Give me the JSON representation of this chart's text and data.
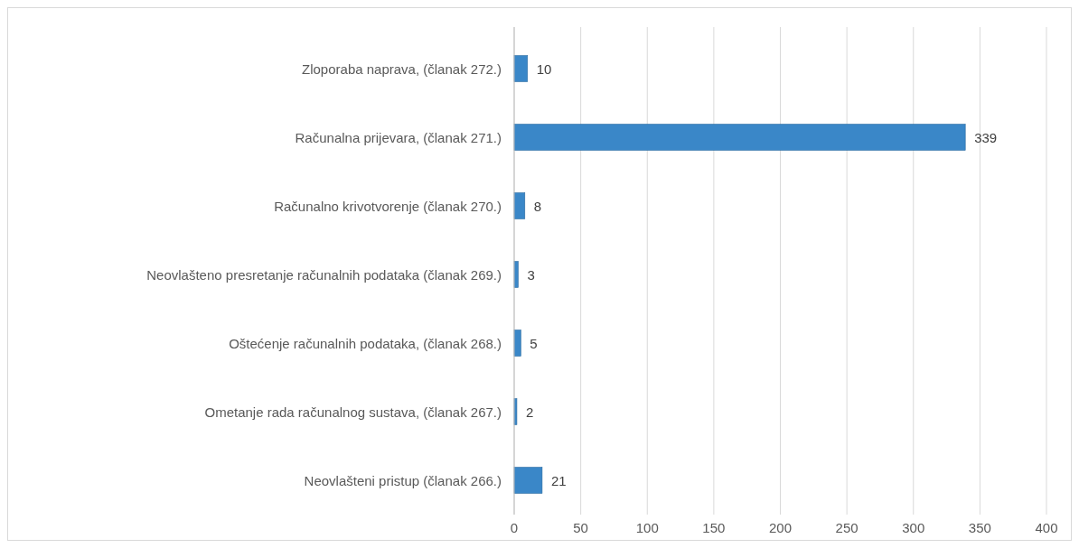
{
  "chart_data": {
    "type": "bar",
    "orientation": "horizontal",
    "categories": [
      "Zloporaba naprava, (članak 272.)",
      "Računalna prijevara, (članak 271.)",
      "Računalno krivotvorenje (članak 270.)",
      "Neovlašteno presretanje računalnih podataka (članak 269.)",
      "Oštećenje računalnih podataka, (članak 268.)",
      "Ometanje rada računalnog sustava, (članak 267.)",
      "Neovlašteni pristup (članak 266.)"
    ],
    "values": [
      10,
      339,
      8,
      3,
      5,
      2,
      21
    ],
    "color": "#3a87c8",
    "xlim": [
      0,
      400
    ],
    "xticks": [
      0,
      50,
      100,
      150,
      200,
      250,
      300,
      350,
      400
    ],
    "grid": "x",
    "data_labels": true
  }
}
